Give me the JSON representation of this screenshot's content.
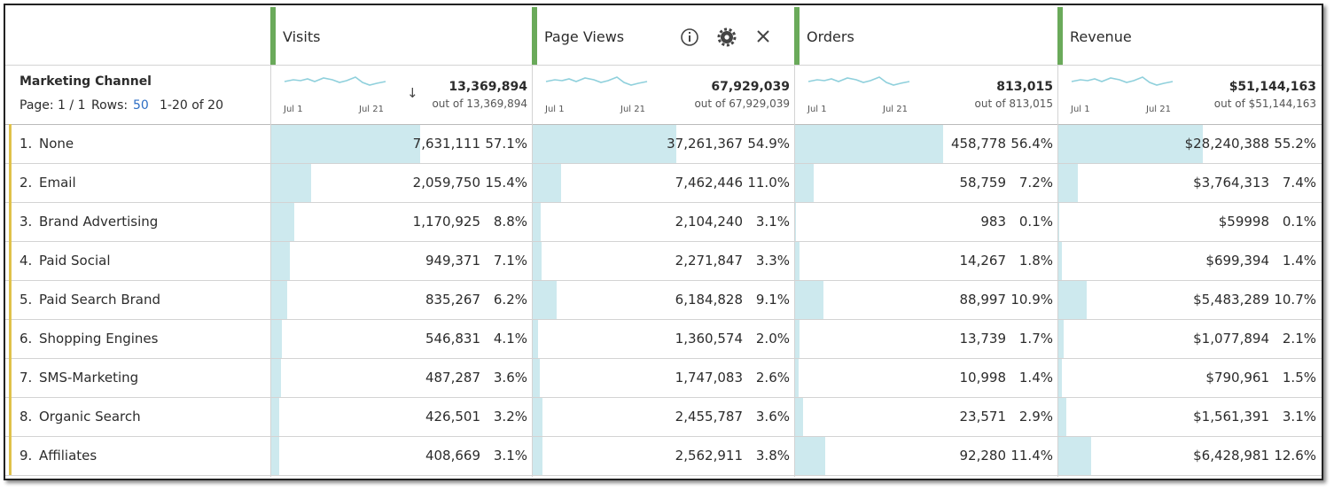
{
  "dimension": {
    "name": "Marketing Channel",
    "page": "Page: 1 / 1",
    "rows_label": "Rows:",
    "rows_value": "50",
    "range": "1-20 of 20"
  },
  "columns": [
    {
      "name": "Visits",
      "total": "13,369,894",
      "out_of": "out of 13,369,894",
      "spark_start": "Jul 1",
      "spark_end": "Jul 21"
    },
    {
      "name": "Page Views",
      "total": "67,929,039",
      "out_of": "out of 67,929,039",
      "spark_start": "Jul 1",
      "spark_end": "Jul 21"
    },
    {
      "name": "Orders",
      "total": "813,015",
      "out_of": "out of 813,015",
      "spark_start": "Jul 1",
      "spark_end": "Jul 21"
    },
    {
      "name": "Revenue",
      "total": "$51,144,163",
      "out_of": "out of $51,144,163",
      "spark_start": "Jul 1",
      "spark_end": "Jul 21"
    }
  ],
  "rows": [
    {
      "rank": "1.",
      "name": "None",
      "cells": [
        {
          "value": "7,631,111",
          "pct": "57.1%"
        },
        {
          "value": "37,261,367",
          "pct": "54.9%"
        },
        {
          "value": "458,778",
          "pct": "56.4%"
        },
        {
          "value": "$28,240,388",
          "pct": "55.2%"
        }
      ]
    },
    {
      "rank": "2.",
      "name": "Email",
      "cells": [
        {
          "value": "2,059,750",
          "pct": "15.4%"
        },
        {
          "value": "7,462,446",
          "pct": "11.0%"
        },
        {
          "value": "58,759",
          "pct": "7.2%"
        },
        {
          "value": "$3,764,313",
          "pct": "7.4%"
        }
      ]
    },
    {
      "rank": "3.",
      "name": "Brand Advertising",
      "cells": [
        {
          "value": "1,170,925",
          "pct": "8.8%"
        },
        {
          "value": "2,104,240",
          "pct": "3.1%"
        },
        {
          "value": "983",
          "pct": "0.1%"
        },
        {
          "value": "$59998",
          "pct": "0.1%"
        }
      ]
    },
    {
      "rank": "4.",
      "name": "Paid Social",
      "cells": [
        {
          "value": "949,371",
          "pct": "7.1%"
        },
        {
          "value": "2,271,847",
          "pct": "3.3%"
        },
        {
          "value": "14,267",
          "pct": "1.8%"
        },
        {
          "value": "$699,394",
          "pct": "1.4%"
        }
      ]
    },
    {
      "rank": "5.",
      "name": "Paid Search Brand",
      "cells": [
        {
          "value": "835,267",
          "pct": "6.2%"
        },
        {
          "value": "6,184,828",
          "pct": "9.1%"
        },
        {
          "value": "88,997",
          "pct": "10.9%"
        },
        {
          "value": "$5,483,289",
          "pct": "10.7%"
        }
      ]
    },
    {
      "rank": "6.",
      "name": "Shopping Engines",
      "cells": [
        {
          "value": "546,831",
          "pct": "4.1%"
        },
        {
          "value": "1,360,574",
          "pct": "2.0%"
        },
        {
          "value": "13,739",
          "pct": "1.7%"
        },
        {
          "value": "$1,077,894",
          "pct": "2.1%"
        }
      ]
    },
    {
      "rank": "7.",
      "name": "SMS-Marketing",
      "cells": [
        {
          "value": "487,287",
          "pct": "3.6%"
        },
        {
          "value": "1,747,083",
          "pct": "2.6%"
        },
        {
          "value": "10,998",
          "pct": "1.4%"
        },
        {
          "value": "$790,961",
          "pct": "1.5%"
        }
      ]
    },
    {
      "rank": "8.",
      "name": "Organic Search",
      "cells": [
        {
          "value": "426,501",
          "pct": "3.2%"
        },
        {
          "value": "2,455,787",
          "pct": "3.6%"
        },
        {
          "value": "23,571",
          "pct": "2.9%"
        },
        {
          "value": "$1,561,391",
          "pct": "3.1%"
        }
      ]
    },
    {
      "rank": "9.",
      "name": "Affiliates",
      "cells": [
        {
          "value": "408,669",
          "pct": "3.1%"
        },
        {
          "value": "2,562,911",
          "pct": "3.8%"
        },
        {
          "value": "92,280",
          "pct": "11.4%"
        },
        {
          "value": "$6,428,981",
          "pct": "12.6%"
        }
      ]
    }
  ]
}
